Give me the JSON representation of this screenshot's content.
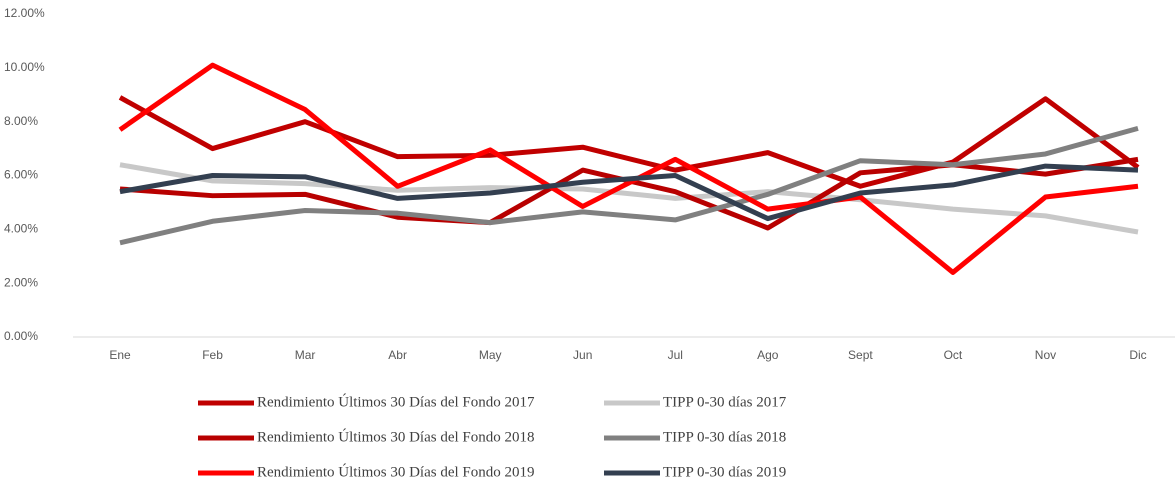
{
  "chart_data": {
    "type": "line",
    "categories": [
      "Ene",
      "Feb",
      "Mar",
      "Abr",
      "May",
      "Jun",
      "Jul",
      "Ago",
      "Sept",
      "Oct",
      "Nov",
      "Dic"
    ],
    "series": [
      {
        "name": "Rendimiento Últimos 30 Días del Fondo 2017",
        "color": "#c00000",
        "values": [
          8.9,
          7.0,
          8.0,
          6.7,
          6.75,
          7.05,
          6.2,
          6.85,
          5.6,
          6.5,
          8.85,
          6.3
        ]
      },
      {
        "name": "TIPP 0-30 días 2017",
        "color": "#c8c8c8",
        "values": [
          6.4,
          5.8,
          5.7,
          5.45,
          5.55,
          5.5,
          5.15,
          5.4,
          5.1,
          4.75,
          4.5,
          3.9
        ]
      },
      {
        "name": "Rendimiento Últimos 30 Días del Fondo 2018",
        "color": "#b80000",
        "values": [
          5.5,
          5.25,
          5.3,
          4.45,
          4.25,
          6.2,
          5.4,
          4.05,
          6.1,
          6.4,
          6.05,
          6.6
        ]
      },
      {
        "name": "TIPP 0-30 días 2018",
        "color": "#808080",
        "values": [
          3.5,
          4.3,
          4.7,
          4.6,
          4.25,
          4.65,
          4.35,
          5.3,
          6.55,
          6.4,
          6.8,
          7.75
        ]
      },
      {
        "name": "Rendimiento Últimos 30 Días del Fondo 2019",
        "color": "#ff0000",
        "values": [
          7.7,
          10.1,
          8.45,
          5.6,
          6.95,
          4.85,
          6.6,
          4.75,
          5.2,
          2.4,
          5.2,
          5.6
        ]
      },
      {
        "name": "TIPP 0-30 días 2019",
        "color": "#333f50",
        "values": [
          5.4,
          6.0,
          5.95,
          5.15,
          5.35,
          5.75,
          6.0,
          4.4,
          5.35,
          5.65,
          6.35,
          6.2
        ]
      }
    ],
    "ylim": [
      0,
      12
    ],
    "yticks": [
      {
        "value": 0,
        "label": "0.00%"
      },
      {
        "value": 2,
        "label": "2.00%"
      },
      {
        "value": 4,
        "label": "4.00%"
      },
      {
        "value": 6,
        "label": "6.00%"
      },
      {
        "value": 8,
        "label": "8.00%"
      },
      {
        "value": 10,
        "label": "10.00%"
      },
      {
        "value": 12,
        "label": "12.00%"
      }
    ],
    "grid": false
  }
}
